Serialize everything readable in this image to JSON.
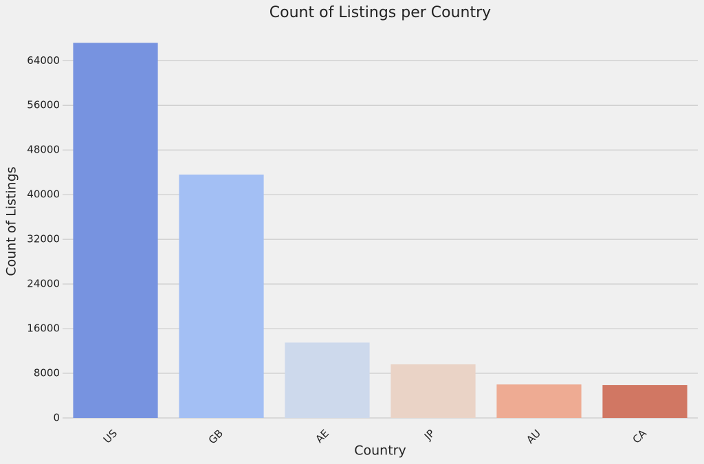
{
  "chart_data": {
    "type": "bar",
    "title": "Count of Listings per Country",
    "x_label": "Country",
    "y_label": "Count of Listings",
    "categories": [
      "US",
      "GB",
      "AE",
      "JP",
      "AU",
      "CA"
    ],
    "values": [
      67200,
      43600,
      13500,
      9600,
      6000,
      5900
    ],
    "colors": [
      "#7793e0",
      "#a3bff4",
      "#cdd9ec",
      "#ead3c6",
      "#eeab93",
      "#d17763"
    ],
    "ylim": [
      0,
      70560
    ],
    "yticks": [
      0,
      8000,
      16000,
      24000,
      32000,
      40000,
      48000,
      56000,
      64000
    ],
    "grid": true
  }
}
